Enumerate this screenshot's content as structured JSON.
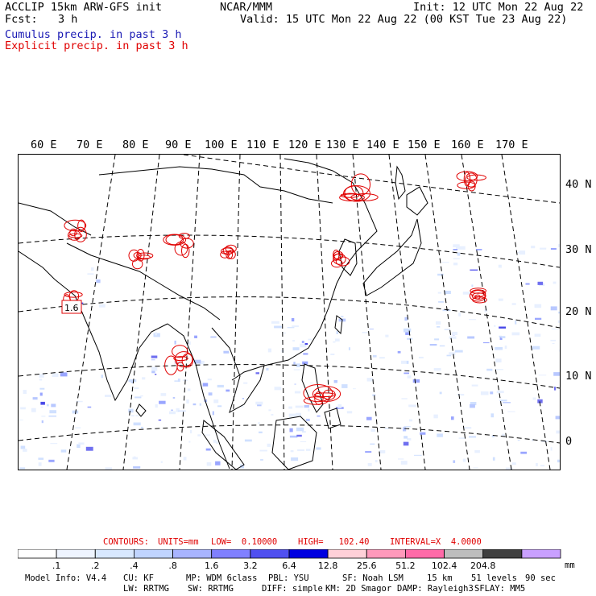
{
  "header": {
    "title_left": "ACCLIP 15km ARW-GFS init",
    "fcst_label": "Fcst:",
    "fcst_value": "3 h",
    "center": "NCAR/MMM",
    "init": "Init: 12 UTC Mon 22 Aug 22",
    "valid": "Valid: 15 UTC Mon 22 Aug 22 (00 KST Tue 23 Aug 22)",
    "legend_cumulus": "Cumulus precip. in past 3 h",
    "legend_explicit": "Explicit precip. in past 3 h"
  },
  "map": {
    "lon_labels": [
      "60 E",
      "70 E",
      "80 E",
      "90 E",
      "100 E",
      "110 E",
      "120 E",
      "130 E",
      "140 E",
      "150 E",
      "160 E",
      "170 E"
    ],
    "lat_labels": [
      "40 N",
      "30 N",
      "20 N",
      "10 N",
      "0"
    ],
    "contour_label": "1.6",
    "colors": {
      "cumulus": "#4040e0",
      "explicit": "#e00000",
      "coast": "#000000",
      "grid": "#000000"
    }
  },
  "contours": {
    "label": "CONTOURS:",
    "units": "UNITS=mm",
    "low": "LOW=  0.10000",
    "high": "HIGH=   102.40",
    "interval": "INTERVAL=X  4.0000"
  },
  "colorbar": {
    "ticks": [
      ".1",
      ".2",
      ".4",
      ".8",
      "1.6",
      "3.2",
      "6.4",
      "12.8",
      "25.6",
      "51.2",
      "102.4",
      "204.8"
    ],
    "unit": "mm",
    "colors": [
      "#ffffff",
      "#eef4ff",
      "#d8e8ff",
      "#c0d4ff",
      "#a8b4ff",
      "#8080ff",
      "#5050f0",
      "#0000e0",
      "#ffd0d8",
      "#ff99bb",
      "#ff6aa8",
      "#bdbdbd",
      "#404040",
      "#c9a0ff"
    ]
  },
  "footer": {
    "line1": [
      "Model Info: V4.4",
      "CU: KF",
      "MP: WDM 6class",
      "PBL: YSU",
      "SF: Noah LSM",
      "15 km",
      "51 levels",
      "90 sec"
    ],
    "line2": [
      "LW: RRTMG",
      "SW: RRTMG",
      "DIFF: simple",
      "KM: 2D Smagor",
      "DAMP: Rayleigh3",
      "SFLAY: MM5"
    ]
  }
}
